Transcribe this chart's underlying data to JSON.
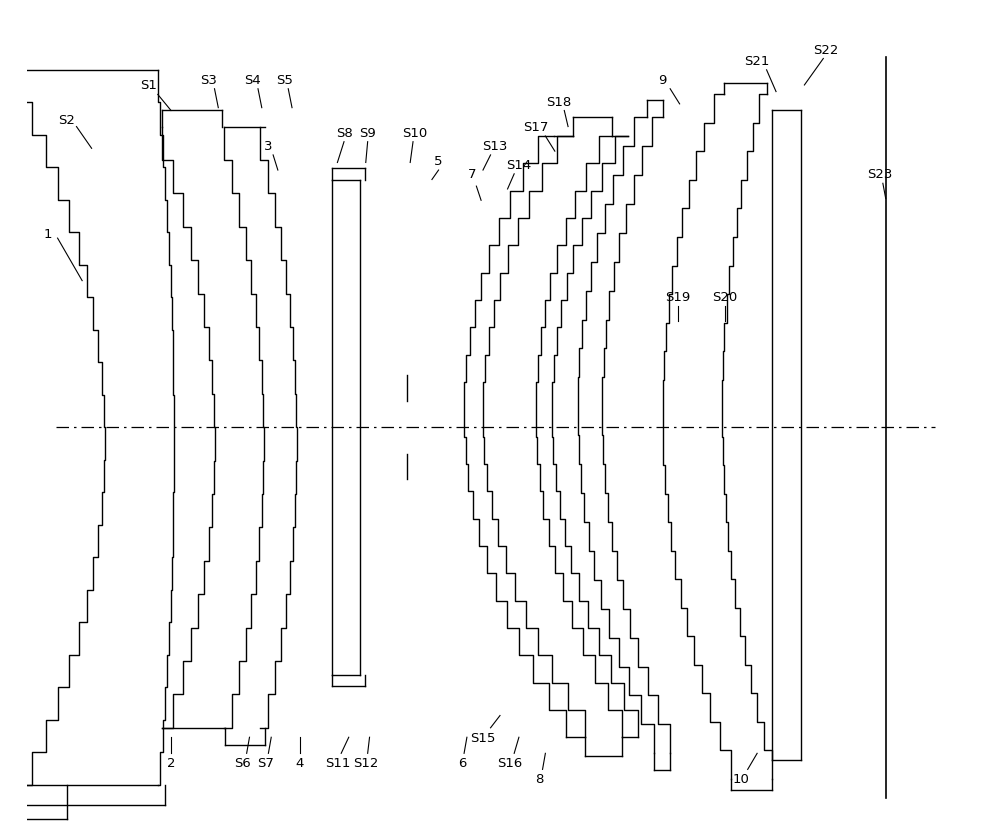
{
  "background_color": "#ffffff",
  "line_color": "#000000",
  "figsize": [
    10.0,
    8.28
  ],
  "dpi": 100,
  "xlim": [
    0,
    10
  ],
  "ylim": [
    -4.2,
    4.5
  ],
  "optical_axis_y": 0.0
}
